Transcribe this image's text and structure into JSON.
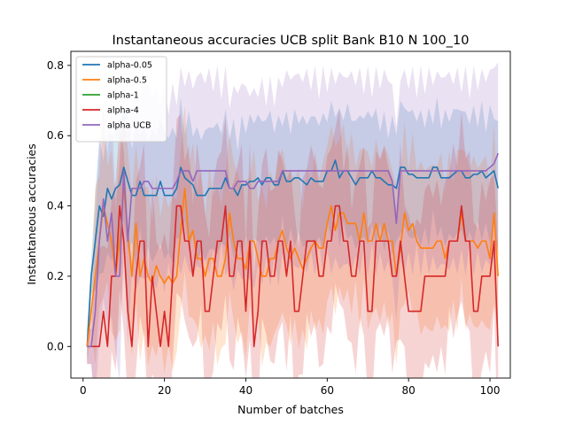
{
  "chart_data": {
    "type": "line",
    "title": "Instantaneous accuracies UCB split Bank B10 N 100_10",
    "xlabel": "Number of batches",
    "ylabel": "Instantaneous accuracies",
    "xlim": [
      -3,
      105
    ],
    "ylim": [
      -0.09,
      0.84
    ],
    "xticks": [
      0,
      20,
      40,
      60,
      80,
      100
    ],
    "yticks": [
      0.0,
      0.2,
      0.4,
      0.6,
      0.8
    ],
    "grid": false,
    "legend_position": "top-left",
    "x_start": 1,
    "series": [
      {
        "name": "alpha-0.05",
        "color": "#1f77b4",
        "values": [
          0,
          0.2,
          0.3,
          0.4,
          0.37,
          0.45,
          0.42,
          0.45,
          0.46,
          0.51,
          0.47,
          0.43,
          0.43,
          0.47,
          0.43,
          0.43,
          0.43,
          0.43,
          0.47,
          0.43,
          0.43,
          0.43,
          0.45,
          0.51,
          0.48,
          0.47,
          0.46,
          0.43,
          0.43,
          0.43,
          0.45,
          0.45,
          0.45,
          0.45,
          0.48,
          0.45,
          0.45,
          0.43,
          0.46,
          0.46,
          0.47,
          0.47,
          0.48,
          0.46,
          0.48,
          0.48,
          0.46,
          0.46,
          0.5,
          0.47,
          0.47,
          0.48,
          0.48,
          0.47,
          0.46,
          0.48,
          0.47,
          0.47,
          0.47,
          0.5,
          0.5,
          0.53,
          0.48,
          0.5,
          0.5,
          0.48,
          0.46,
          0.48,
          0.48,
          0.48,
          0.5,
          0.48,
          0.48,
          0.47,
          0.46,
          0.46,
          0.45,
          0.51,
          0.51,
          0.49,
          0.49,
          0.48,
          0.48,
          0.48,
          0.48,
          0.51,
          0.51,
          0.48,
          0.48,
          0.48,
          0.49,
          0.5,
          0.5,
          0.48,
          0.48,
          0.49,
          0.49,
          0.5,
          0.48,
          0.49,
          0.5,
          0.45
        ]
      },
      {
        "name": "alpha-0.5",
        "color": "#ff7f0e",
        "values": [
          0,
          0.1,
          0.2,
          0.3,
          0.4,
          0.35,
          0.3,
          0.2,
          0.3,
          0.45,
          0.32,
          0.2,
          0.35,
          0.2,
          0.25,
          0.2,
          0.18,
          0.23,
          0.2,
          0.18,
          0.2,
          0.18,
          0.2,
          0.33,
          0.45,
          0.3,
          0.33,
          0.25,
          0.25,
          0.2,
          0.25,
          0.25,
          0.2,
          0.2,
          0.25,
          0.38,
          0.3,
          0.25,
          0.25,
          0.22,
          0.3,
          0.3,
          0.25,
          0.2,
          0.2,
          0.25,
          0.25,
          0.3,
          0.33,
          0.28,
          0.25,
          0.28,
          0.25,
          0.22,
          0.25,
          0.28,
          0.3,
          0.28,
          0.28,
          0.35,
          0.4,
          0.33,
          0.38,
          0.38,
          0.35,
          0.35,
          0.35,
          0.3,
          0.38,
          0.3,
          0.3,
          0.35,
          0.3,
          0.35,
          0.3,
          0.3,
          0.2,
          0.28,
          0.38,
          0.33,
          0.35,
          0.3,
          0.28,
          0.28,
          0.28,
          0.28,
          0.3,
          0.3,
          0.25,
          0.3,
          0.3,
          0.3,
          0.38,
          0.3,
          0.3,
          0.3,
          0.28,
          0.3,
          0.3,
          0.25,
          0.38,
          0.2
        ]
      },
      {
        "name": "alpha-1",
        "color": "#2ca02c",
        "values": []
      },
      {
        "name": "alpha-4",
        "color": "#d62728",
        "values": [
          0,
          0,
          0,
          0,
          0.1,
          0,
          0.2,
          0.2,
          0.4,
          0.3,
          0.1,
          0,
          0.2,
          0.3,
          0.3,
          0,
          0.2,
          0.1,
          0,
          0.1,
          0,
          0.2,
          0.4,
          0.4,
          0.3,
          0.3,
          0.2,
          0.3,
          0.3,
          0.1,
          0.1,
          0.2,
          0.3,
          0.3,
          0.4,
          0.2,
          0.2,
          0.3,
          0.3,
          0.1,
          0.3,
          0,
          0.1,
          0.3,
          0.3,
          0.2,
          0.2,
          0.3,
          0.3,
          0.2,
          0.3,
          0.1,
          0.1,
          0.2,
          0.3,
          0.3,
          0.3,
          0.2,
          0.2,
          0.3,
          0.3,
          0.4,
          0.4,
          0.3,
          0.3,
          0.2,
          0.2,
          0.3,
          0.3,
          0.1,
          0.1,
          0.3,
          0.3,
          0.3,
          0.3,
          0.2,
          0.2,
          0.3,
          0.2,
          0.1,
          0.1,
          0.1,
          0.1,
          0.2,
          0.2,
          0.2,
          0.2,
          0.2,
          0.2,
          0.3,
          0.3,
          0.3,
          0.4,
          0.3,
          0.3,
          0.1,
          0.1,
          0.2,
          0.2,
          0.2,
          0.3,
          0
        ]
      },
      {
        "name": "alpha UCB",
        "color": "#9467bd",
        "values": [
          0,
          0,
          0.1,
          0.3,
          0.42,
          0.3,
          0.38,
          0.2,
          0.2,
          0.5,
          0.3,
          0.45,
          0.45,
          0.45,
          0.47,
          0.47,
          0.45,
          0.45,
          0.45,
          0.45,
          0.45,
          0.45,
          0.47,
          0.5,
          0.5,
          0.5,
          0.47,
          0.5,
          0.5,
          0.5,
          0.5,
          0.5,
          0.5,
          0.5,
          0.5,
          0.45,
          0.45,
          0.47,
          0.47,
          0.47,
          0.45,
          0.45,
          0.47,
          0.47,
          0.47,
          0.47,
          0.47,
          0.47,
          0.5,
          0.5,
          0.5,
          0.5,
          0.5,
          0.5,
          0.5,
          0.5,
          0.5,
          0.5,
          0.5,
          0.5,
          0.5,
          0.5,
          0.5,
          0.5,
          0.5,
          0.5,
          0.5,
          0.5,
          0.5,
          0.5,
          0.5,
          0.5,
          0.5,
          0.5,
          0.5,
          0.47,
          0.35,
          0.5,
          0.5,
          0.5,
          0.5,
          0.5,
          0.5,
          0.5,
          0.5,
          0.5,
          0.5,
          0.5,
          0.5,
          0.5,
          0.5,
          0.5,
          0.5,
          0.5,
          0.5,
          0.5,
          0.5,
          0.5,
          0.5,
          0.51,
          0.52,
          0.55
        ]
      }
    ]
  }
}
